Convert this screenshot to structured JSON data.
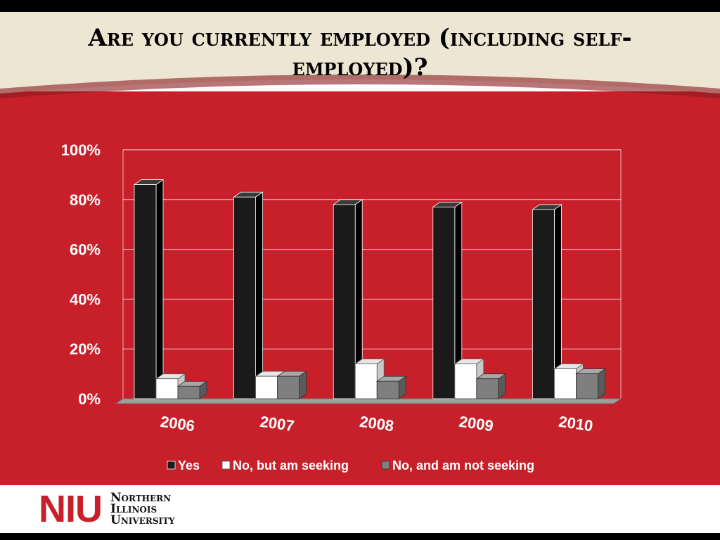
{
  "slide": {
    "title": "Are you currently employed (including self-employed)?"
  },
  "colors": {
    "background_red": "#c8202a",
    "header_cream": "#ede6d2",
    "yes": "#1a1a1a",
    "seeking": "#ffffff",
    "not_seeking": "#7f7f7f"
  },
  "chart_data": {
    "type": "bar",
    "title": "",
    "xlabel": "",
    "ylabel": "",
    "categories": [
      "2006",
      "2007",
      "2008",
      "2009",
      "2010"
    ],
    "series": [
      {
        "name": "Yes",
        "values": [
          86,
          81,
          78,
          77,
          76
        ]
      },
      {
        "name": "No, but am seeking",
        "values": [
          8,
          9,
          14,
          14,
          12
        ]
      },
      {
        "name": "No, and am not seeking",
        "values": [
          5,
          9,
          7,
          8,
          10
        ]
      }
    ],
    "ylim": [
      0,
      100
    ],
    "yticks": [
      "0%",
      "20%",
      "40%",
      "60%",
      "80%",
      "100%"
    ],
    "grid": true,
    "legend_position": "bottom",
    "style": "3d-clustered"
  },
  "footer": {
    "logo_mark": "NIU",
    "logo_line1": "Northern",
    "logo_line2": "Illinois",
    "logo_line3": "University"
  }
}
